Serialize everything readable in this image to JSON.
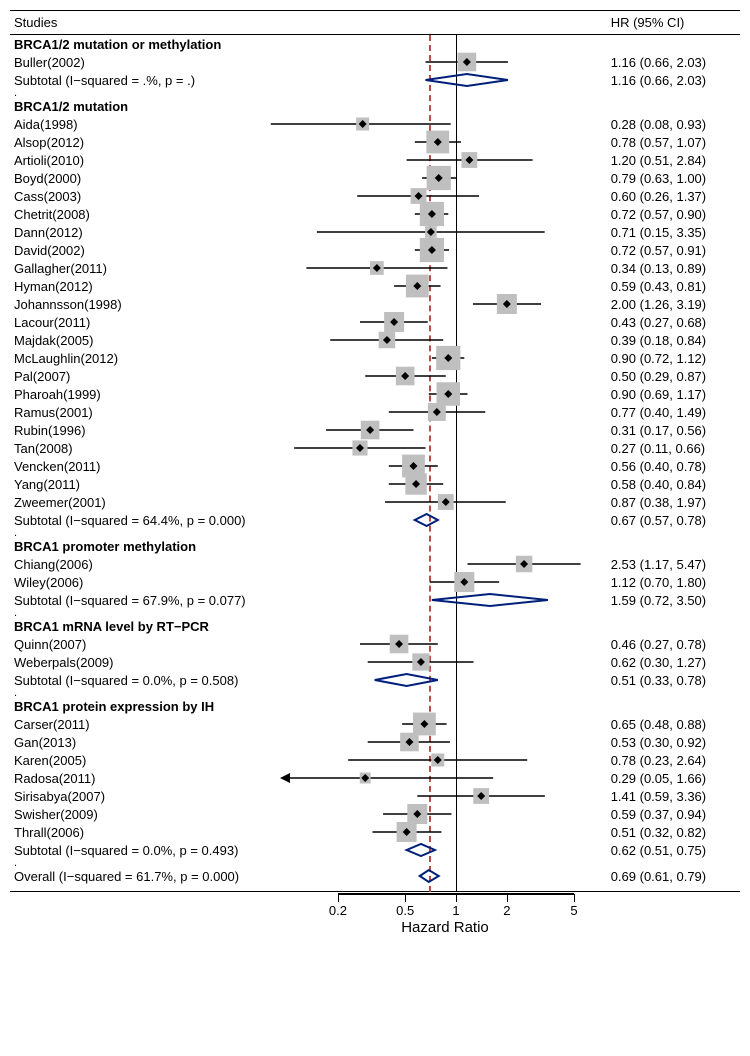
{
  "title_left": "Studies",
  "title_right": "HR (95% CI)",
  "xlabel": "Hazard Ratio",
  "axis": {
    "min_log": -2.4,
    "max_log": 2.1,
    "ticks": [
      0.2,
      0.5,
      1,
      2,
      5
    ],
    "ref": 1,
    "overall_dashed": 0.69
  },
  "colors": {
    "box_fill": "#bfbfbf",
    "marker_stroke": "#000000",
    "diamond_stroke": "#001f7a",
    "ref_line": "#000000",
    "dashed_line": "#b05048"
  },
  "groups": [
    {
      "title": "BRCA1/2 mutation or methylation",
      "rows": [
        {
          "label": "Buller(2002)",
          "hr": 1.16,
          "lo": 0.66,
          "hi": 2.03,
          "box": 0.18
        },
        {
          "type": "subtotal",
          "label": "Subtotal  (I−squared = .%, p = .)",
          "hr": 1.16,
          "lo": 0.66,
          "hi": 2.03
        }
      ]
    },
    {
      "title": "BRCA1/2 mutation",
      "rows": [
        {
          "label": "Aida(1998)",
          "hr": 0.28,
          "lo": 0.08,
          "hi": 0.93,
          "box": 0.1
        },
        {
          "label": "Alsop(2012)",
          "hr": 0.78,
          "lo": 0.57,
          "hi": 1.07,
          "box": 0.24
        },
        {
          "label": "Artioli(2010)",
          "hr": 1.2,
          "lo": 0.51,
          "hi": 2.84,
          "box": 0.14
        },
        {
          "label": "Boyd(2000)",
          "hr": 0.79,
          "lo": 0.63,
          "hi": 1.0,
          "box": 0.26
        },
        {
          "label": "Cass(2003)",
          "hr": 0.6,
          "lo": 0.26,
          "hi": 1.37,
          "box": 0.14
        },
        {
          "label": "Chetrit(2008)",
          "hr": 0.72,
          "lo": 0.57,
          "hi": 0.9,
          "box": 0.26
        },
        {
          "label": "Dann(2012)",
          "hr": 0.71,
          "lo": 0.15,
          "hi": 3.35,
          "box": 0.08
        },
        {
          "label": "David(2002)",
          "hr": 0.72,
          "lo": 0.57,
          "hi": 0.91,
          "box": 0.26
        },
        {
          "label": "Gallagher(2011)",
          "hr": 0.34,
          "lo": 0.13,
          "hi": 0.89,
          "box": 0.11
        },
        {
          "label": "Hyman(2012)",
          "hr": 0.59,
          "lo": 0.43,
          "hi": 0.81,
          "box": 0.24
        },
        {
          "label": "Johannsson(1998)",
          "hr": 2.0,
          "lo": 1.26,
          "hi": 3.19,
          "box": 0.2
        },
        {
          "label": "Lacour(2011)",
          "hr": 0.43,
          "lo": 0.27,
          "hi": 0.68,
          "box": 0.2
        },
        {
          "label": "Majdak(2005)",
          "hr": 0.39,
          "lo": 0.18,
          "hi": 0.84,
          "box": 0.15
        },
        {
          "label": "McLaughlin(2012)",
          "hr": 0.9,
          "lo": 0.72,
          "hi": 1.12,
          "box": 0.26
        },
        {
          "label": "Pal(2007)",
          "hr": 0.5,
          "lo": 0.29,
          "hi": 0.87,
          "box": 0.18
        },
        {
          "label": "Pharoah(1999)",
          "hr": 0.9,
          "lo": 0.69,
          "hi": 1.17,
          "box": 0.25
        },
        {
          "label": "Ramus(2001)",
          "hr": 0.77,
          "lo": 0.4,
          "hi": 1.49,
          "box": 0.17
        },
        {
          "label": "Rubin(1996)",
          "hr": 0.31,
          "lo": 0.17,
          "hi": 0.56,
          "box": 0.18
        },
        {
          "label": "Tan(2008)",
          "hr": 0.27,
          "lo": 0.11,
          "hi": 0.66,
          "box": 0.13
        },
        {
          "label": "Vencken(2011)",
          "hr": 0.56,
          "lo": 0.4,
          "hi": 0.78,
          "box": 0.24
        },
        {
          "label": "Yang(2011)",
          "hr": 0.58,
          "lo": 0.4,
          "hi": 0.84,
          "box": 0.22
        },
        {
          "label": "Zweemer(2001)",
          "hr": 0.87,
          "lo": 0.38,
          "hi": 1.97,
          "box": 0.14
        },
        {
          "type": "subtotal",
          "label": "Subtotal  (I−squared = 64.4%, p = 0.000)",
          "hr": 0.67,
          "lo": 0.57,
          "hi": 0.78
        }
      ]
    },
    {
      "title": "BRCA1 promoter methylation",
      "rows": [
        {
          "label": "Chiang(2006)",
          "hr": 2.53,
          "lo": 1.17,
          "hi": 5.47,
          "box": 0.15
        },
        {
          "label": "Wiley(2006)",
          "hr": 1.12,
          "lo": 0.7,
          "hi": 1.8,
          "box": 0.2
        },
        {
          "type": "subtotal",
          "label": "Subtotal  (I−squared = 67.9%, p = 0.077)",
          "hr": 1.59,
          "lo": 0.72,
          "hi": 3.5
        }
      ]
    },
    {
      "title": "BRCA1 mRNA level by RT−PCR",
      "rows": [
        {
          "label": "Quinn(2007)",
          "hr": 0.46,
          "lo": 0.27,
          "hi": 0.78,
          "box": 0.18
        },
        {
          "label": "Weberpals(2009)",
          "hr": 0.62,
          "lo": 0.3,
          "hi": 1.27,
          "box": 0.16
        },
        {
          "type": "subtotal",
          "label": "Subtotal  (I−squared = 0.0%, p = 0.508)",
          "hr": 0.51,
          "lo": 0.33,
          "hi": 0.78
        }
      ]
    },
    {
      "title": "BRCA1 protein expression by IH",
      "rows": [
        {
          "label": "Carser(2011)",
          "hr": 0.65,
          "lo": 0.48,
          "hi": 0.88,
          "box": 0.24
        },
        {
          "label": "Gan(2013)",
          "hr": 0.53,
          "lo": 0.3,
          "hi": 0.92,
          "box": 0.18
        },
        {
          "label": "Karen(2005)",
          "hr": 0.78,
          "lo": 0.23,
          "hi": 2.64,
          "box": 0.1
        },
        {
          "label": "Radosa(2011)",
          "hr": 0.29,
          "lo": 0.05,
          "hi": 1.66,
          "box": 0.07,
          "arrow_left": true
        },
        {
          "label": "Sirisabya(2007)",
          "hr": 1.41,
          "lo": 0.59,
          "hi": 3.36,
          "box": 0.14
        },
        {
          "label": "Swisher(2009)",
          "hr": 0.59,
          "lo": 0.37,
          "hi": 0.94,
          "box": 0.2
        },
        {
          "label": "Thrall(2006)",
          "hr": 0.51,
          "lo": 0.32,
          "hi": 0.82,
          "box": 0.2
        },
        {
          "type": "subtotal",
          "label": "Subtotal  (I−squared = 0.0%, p = 0.493)",
          "hr": 0.62,
          "lo": 0.51,
          "hi": 0.75
        }
      ]
    }
  ],
  "overall": {
    "label": "Overall  (I−squared = 61.7%, p = 0.000)",
    "hr": 0.69,
    "lo": 0.61,
    "hi": 0.79
  }
}
